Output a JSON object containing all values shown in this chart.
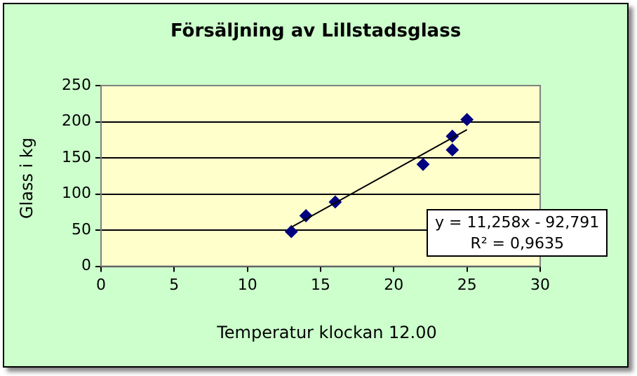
{
  "chart_data": {
    "type": "scatter",
    "title": "Försäljning av Lillstadsglass",
    "xlabel": "Temperatur klockan 12.00",
    "ylabel": "Glass i kg",
    "series": [
      {
        "color": "#000080",
        "marker": "diamond",
        "x": [
          13,
          14,
          16,
          22,
          24,
          24,
          25
        ],
        "values": [
          48,
          70,
          89,
          141,
          161,
          180,
          203
        ]
      },
      {
        "type": "line",
        "color": "#000000",
        "marker": "none",
        "x": [
          13,
          25
        ],
        "values": [
          54,
          189
        ]
      }
    ],
    "annotations": [
      "y = 11,258x - 92,791",
      "R² = 0,9635"
    ],
    "xlim": [
      0,
      30
    ],
    "xticks": [
      0,
      5,
      10,
      15,
      20,
      25,
      30
    ],
    "ylim": [
      0,
      250
    ],
    "yticks": [
      0,
      50,
      100,
      150,
      200,
      250
    ],
    "grid": "y",
    "legend": false
  }
}
